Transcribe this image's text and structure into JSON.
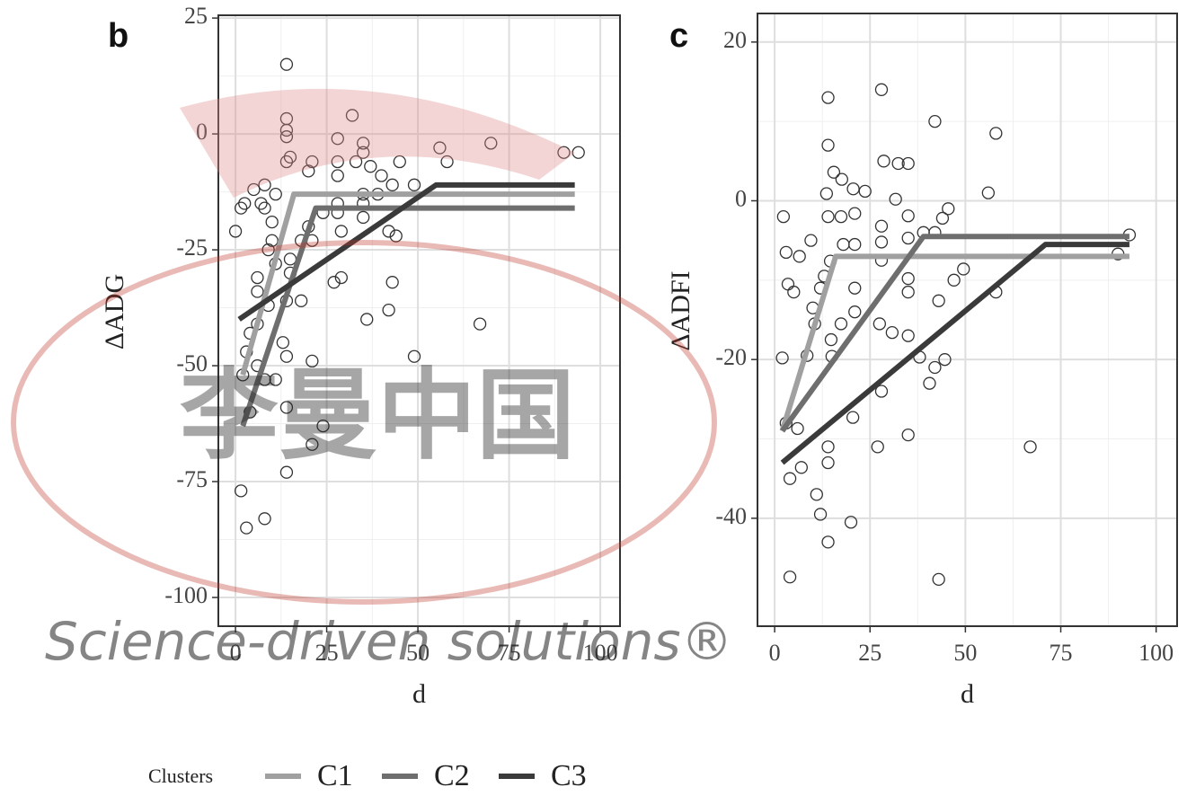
{
  "chart_data": [
    {
      "type": "scatter",
      "panel_label": "b",
      "x_label": "d",
      "y_label": "ΔADG",
      "xlim": [
        -4.7,
        105.4
      ],
      "ylim": [
        -106.2,
        25.6
      ],
      "xticks": [
        0,
        25,
        50,
        75,
        100
      ],
      "yticks": [
        -100,
        -75,
        -50,
        -25,
        0,
        25
      ],
      "grid": true,
      "points": {
        "color": "#333333",
        "x": [
          14,
          14,
          14,
          14,
          15,
          14,
          21,
          20,
          28,
          28,
          28,
          32,
          35,
          35,
          33,
          37,
          40,
          45,
          43,
          49,
          56,
          58,
          70,
          90,
          94,
          1.5,
          2.5,
          0,
          5,
          7,
          8,
          11,
          8,
          10,
          10,
          9,
          11,
          6,
          6,
          9,
          14,
          15,
          15,
          13,
          14,
          21,
          6,
          4,
          3,
          6,
          2,
          8,
          11,
          14,
          21,
          24,
          14,
          4,
          1.5,
          3,
          8,
          36,
          42,
          43,
          49,
          67,
          27,
          29,
          20,
          21,
          28,
          28,
          35,
          35,
          35,
          39,
          42,
          44,
          18,
          24,
          29,
          18
        ],
        "y": [
          15,
          3.3,
          0.8,
          -0.6,
          -5,
          -6,
          -6,
          -8,
          -1,
          -6,
          -9,
          4,
          -2,
          -4,
          -6,
          -7,
          -9,
          -6,
          -11,
          -11,
          -3,
          -6,
          -2,
          -4,
          -4,
          -16,
          -15,
          -21,
          -12,
          -15,
          -11,
          -13,
          -16,
          -19,
          -23,
          -25,
          -28,
          -31,
          -34,
          -37,
          -36,
          -27,
          -30,
          -45,
          -48,
          -49,
          -41,
          -43,
          -47,
          -50,
          -52,
          -53,
          -53,
          -59,
          -67,
          -63,
          -73,
          -60,
          -77,
          -85,
          -83,
          -40,
          -38,
          -32,
          -48,
          -41,
          -32,
          -31,
          -20,
          -23,
          -15,
          -17,
          -15,
          -18,
          -13,
          -13,
          -21,
          -22,
          -36,
          -17,
          -21,
          -23
        ]
      },
      "series": [
        {
          "name": "C1",
          "color": "#a0a0a0",
          "x": [
            2,
            16,
            93
          ],
          "values": [
            -52,
            -13,
            -13
          ]
        },
        {
          "name": "C2",
          "color": "#6e6e6e",
          "x": [
            2,
            22,
            93
          ],
          "values": [
            -63,
            -16,
            -16
          ]
        },
        {
          "name": "C3",
          "color": "#3a3a3a",
          "x": [
            1,
            55,
            93
          ],
          "values": [
            -40,
            -11,
            -11
          ]
        }
      ]
    },
    {
      "type": "scatter",
      "panel_label": "c",
      "x_label": "d",
      "y_label": "ΔADFI",
      "xlim": [
        -4.5,
        105.5
      ],
      "ylim": [
        -53.6,
        23.6
      ],
      "xticks": [
        0,
        25,
        50,
        75,
        100
      ],
      "yticks": [
        -40,
        -20,
        0,
        20
      ],
      "grid": true,
      "points": {
        "color": "#333333",
        "x": [
          14,
          28,
          14,
          42,
          58,
          2.3,
          3,
          3.5,
          5,
          6.5,
          9.5,
          10,
          10.5,
          12,
          13,
          13.6,
          14,
          14.6,
          15.5,
          17.6,
          17.4,
          18,
          20.6,
          23.7,
          21,
          21,
          21,
          21,
          17.4,
          14.8,
          15,
          8.5,
          2,
          3,
          4,
          7,
          6,
          11,
          12,
          14,
          14,
          14,
          4,
          20,
          20.5,
          27,
          28,
          27.5,
          30.8,
          35,
          35,
          43,
          44.6,
          42,
          40.6,
          43,
          47,
          49.5,
          44,
          45.5,
          56,
          58,
          67,
          93,
          90,
          28,
          28,
          28,
          31.7,
          35,
          28.6,
          32.4,
          35,
          35,
          35,
          35,
          42,
          39,
          38
        ],
        "y": [
          13,
          14,
          7,
          10,
          8.5,
          -2,
          -6.5,
          -10.5,
          -11.5,
          -7,
          -5,
          -13.5,
          -15.5,
          -11,
          -9.5,
          0.9,
          -2,
          -7.6,
          3.6,
          2.7,
          -2,
          -5.5,
          1.5,
          1.2,
          -1.6,
          -5.5,
          -11,
          -14,
          -15.5,
          -17.5,
          -19.6,
          -19.5,
          -19.8,
          -28,
          -35,
          -33.6,
          -28.7,
          -37,
          -39.5,
          -43,
          -31,
          -33,
          -47.4,
          -40.5,
          -27.3,
          -31,
          -24,
          -15.5,
          -16.6,
          -17,
          -29.5,
          -47.7,
          -20,
          -21,
          -23,
          -12.6,
          -10,
          -8.6,
          -2.2,
          -1,
          1,
          -11.5,
          -31,
          -4.3,
          -6.7,
          -5.2,
          -3.2,
          -7.5,
          0.2,
          4.7,
          5,
          4.7,
          -1.9,
          -4.7,
          -9.8,
          -11.5,
          -4,
          -4,
          -19.7
        ]
      },
      "series": [
        {
          "name": "C1",
          "color": "#a0a0a0",
          "x": [
            2,
            16,
            93
          ],
          "values": [
            -29,
            -7,
            -7
          ]
        },
        {
          "name": "C2",
          "color": "#6e6e6e",
          "x": [
            2,
            39,
            93
          ],
          "values": [
            -29,
            -4.5,
            -4.5
          ]
        },
        {
          "name": "C3",
          "color": "#3a3a3a",
          "x": [
            2,
            71,
            93
          ],
          "values": [
            -33,
            -5.5,
            -5.5
          ]
        }
      ]
    }
  ],
  "legend": {
    "title": "Clusters"
  },
  "watermark": {
    "cn": "李曼中国",
    "en": "Science-driven solutions®"
  }
}
